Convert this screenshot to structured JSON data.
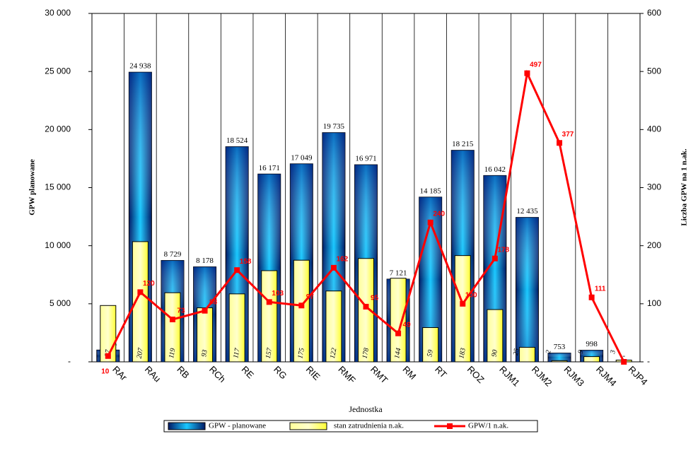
{
  "chart_data": {
    "type": "bar",
    "x_label": "Jednostka",
    "y_label": "GPW planowane",
    "y2_label": "Liczba GPW na 1 n.ak.",
    "categories": [
      "RAr",
      "RAu",
      "RB",
      "RCh",
      "RE",
      "RG",
      "RIE",
      "RMF",
      "RMT",
      "RM",
      "RT",
      "ROZ",
      "RJM1",
      "RJM2",
      "RJM3",
      "RJM4",
      "RJP4"
    ],
    "series": [
      {
        "name": "GPW - planowane",
        "color": "#0a7ae6",
        "values": [
          1015,
          24938,
          8729,
          8178,
          18524,
          16171,
          17049,
          19735,
          16971,
          7121,
          14185,
          18215,
          16042,
          12435,
          753,
          998,
          0
        ],
        "value_labels": [
          "1 015",
          "24 938",
          "8 729",
          "8 178",
          "18 524",
          "16 171",
          "17 049",
          "19 735",
          "16 971",
          "7 121",
          "14 185",
          "18 215",
          "16 042",
          "12 435",
          "753",
          "998",
          "-"
        ]
      },
      {
        "name": "stan zatrudnienia n.ak.",
        "color": "#ffff66",
        "axis": "y2",
        "values": [
          97,
          207,
          119,
          93,
          117,
          157,
          175,
          122,
          178,
          144,
          59,
          183,
          90,
          25,
          2,
          9,
          3
        ]
      },
      {
        "name": "GPW/1 n.ak.",
        "color": "#ff0000",
        "axis": "y2",
        "type": "line",
        "values": [
          10,
          120,
          73,
          88,
          158,
          103,
          97,
          162,
          95,
          49,
          240,
          100,
          178,
          497,
          377,
          111,
          0
        ],
        "value_labels": [
          "10",
          "120",
          "73",
          "88",
          "158",
          "103",
          "97",
          "162",
          "95",
          "49",
          "240",
          "100",
          "178",
          "497",
          "377",
          "111",
          null
        ]
      }
    ],
    "ylim": [
      0,
      30000
    ],
    "yticks": [
      {
        "value": 0,
        "label": "-"
      },
      {
        "value": 5000,
        "label": "5 000"
      },
      {
        "value": 10000,
        "label": "10 000"
      },
      {
        "value": 15000,
        "label": "15 000"
      },
      {
        "value": 20000,
        "label": "20 000"
      },
      {
        "value": 25000,
        "label": "25 000"
      },
      {
        "value": 30000,
        "label": "30 000"
      }
    ],
    "y2lim": [
      0,
      600
    ],
    "y2ticks": [
      {
        "value": 0,
        "label": "-"
      },
      100,
      200,
      300,
      400,
      500,
      600
    ],
    "grid": true,
    "legend": "bottom"
  }
}
